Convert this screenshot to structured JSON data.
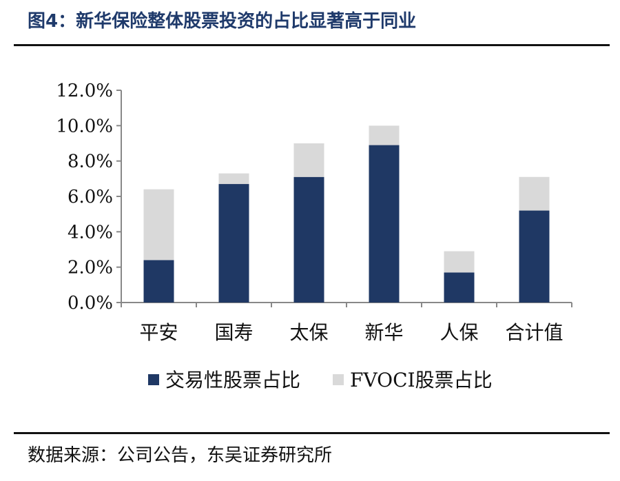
{
  "header": {
    "title": "图4：新华保险整体股票投资的占比显著高于同业"
  },
  "footer": {
    "source": "数据来源：公司公告，东吴证券研究所"
  },
  "chart_data": {
    "type": "bar",
    "stacked": true,
    "categories": [
      "平安",
      "国寿",
      "太保",
      "新华",
      "人保",
      "合计值"
    ],
    "series": [
      {
        "name": "交易性股票占比",
        "values": [
          2.4,
          6.7,
          7.1,
          8.9,
          1.7,
          5.2
        ],
        "color": "#1f3864"
      },
      {
        "name": "FVOCI股票占比",
        "values": [
          4.0,
          0.6,
          1.9,
          1.1,
          1.2,
          1.9
        ],
        "color": "#d9d9d9"
      }
    ],
    "y_ticks": [
      "0.0%",
      "2.0%",
      "4.0%",
      "6.0%",
      "8.0%",
      "10.0%",
      "12.0%"
    ],
    "ylim": [
      0,
      12
    ],
    "grid": false,
    "legend_position": "bottom"
  }
}
